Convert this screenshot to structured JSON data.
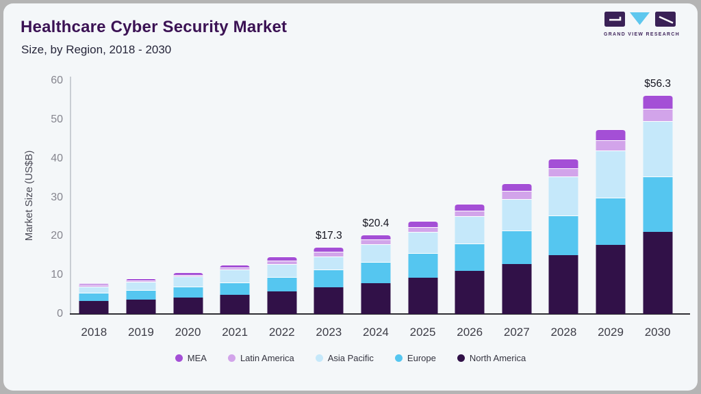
{
  "header": {
    "title": "Healthcare Cyber Security Market",
    "subtitle": "Size, by Region, 2018 - 2030"
  },
  "logo": {
    "brand": "GRAND VIEW RESEARCH",
    "mark_dark_color": "#3a2156",
    "mark_blue_color": "#5ec7ee"
  },
  "chart_data": {
    "type": "bar",
    "stacked": true,
    "title": "Healthcare Cyber Security Market Size, by Region, 2018 - 2030",
    "ylabel": "Market Size (US$B)",
    "xlabel": "",
    "ylim": [
      0,
      60
    ],
    "yticks": [
      "0",
      "10",
      "20",
      "30",
      "40",
      "50",
      "60"
    ],
    "grid": false,
    "legend_position": "bottom",
    "categories": [
      "2018",
      "2019",
      "2020",
      "2021",
      "2022",
      "2023",
      "2024",
      "2025",
      "2026",
      "2027",
      "2028",
      "2029",
      "2030"
    ],
    "series": [
      {
        "name": "North America",
        "color": "#311148",
        "values": [
          3.3,
          3.7,
          4.3,
          5.0,
          5.8,
          6.9,
          7.9,
          9.4,
          11.0,
          12.9,
          15.1,
          17.8,
          21.1
        ]
      },
      {
        "name": "Europe",
        "color": "#55c6f0",
        "values": [
          2.2,
          2.4,
          2.7,
          3.1,
          3.7,
          4.5,
          5.4,
          6.3,
          7.2,
          8.6,
          10.3,
          12.1,
          14.2
        ]
      },
      {
        "name": "Asia Pacific",
        "color": "#c5e8fa",
        "values": [
          1.6,
          2.2,
          2.6,
          3.3,
          3.3,
          3.4,
          4.6,
          5.5,
          6.9,
          8.1,
          10.0,
          12.2,
          14.3
        ]
      },
      {
        "name": "Latin America",
        "color": "#d2a4ea",
        "values": [
          0.4,
          0.4,
          0.5,
          0.6,
          1.0,
          1.2,
          1.2,
          1.1,
          1.5,
          2.1,
          2.1,
          2.6,
          3.2
        ]
      },
      {
        "name": "MEA",
        "color": "#a44fd6",
        "values": [
          0.5,
          0.5,
          0.6,
          0.6,
          1.0,
          1.3,
          1.3,
          1.7,
          1.8,
          2.0,
          2.5,
          2.9,
          3.5
        ]
      }
    ],
    "totals": {
      "2018": 8.0,
      "2019": 9.2,
      "2020": 10.7,
      "2021": 12.6,
      "2022": 14.8,
      "2023": 17.3,
      "2024": 20.4,
      "2025": 24.0,
      "2026": 28.4,
      "2027": 33.7,
      "2028": 40.0,
      "2029": 47.6,
      "2030": 56.3
    },
    "annotations": {
      "2023": "$17.3",
      "2024": "$20.4",
      "2030": "$56.3"
    },
    "legend_order": [
      "MEA",
      "Latin America",
      "Asia Pacific",
      "Europe",
      "North America"
    ]
  }
}
